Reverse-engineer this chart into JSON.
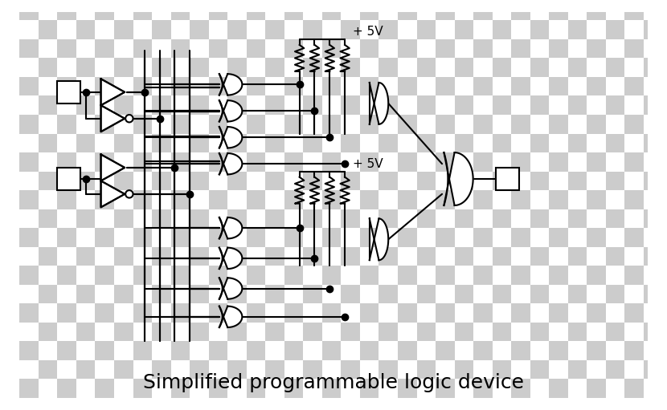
{
  "title": "Simplified programmable logic device",
  "title_fontsize": 18,
  "background_color": "white",
  "line_color": "black",
  "line_width": 1.5,
  "dot_size": 6,
  "fig_width": 8.3,
  "fig_height": 5.11,
  "checkerboard_color": "#cccccc",
  "checkerboard_size": 0.5
}
